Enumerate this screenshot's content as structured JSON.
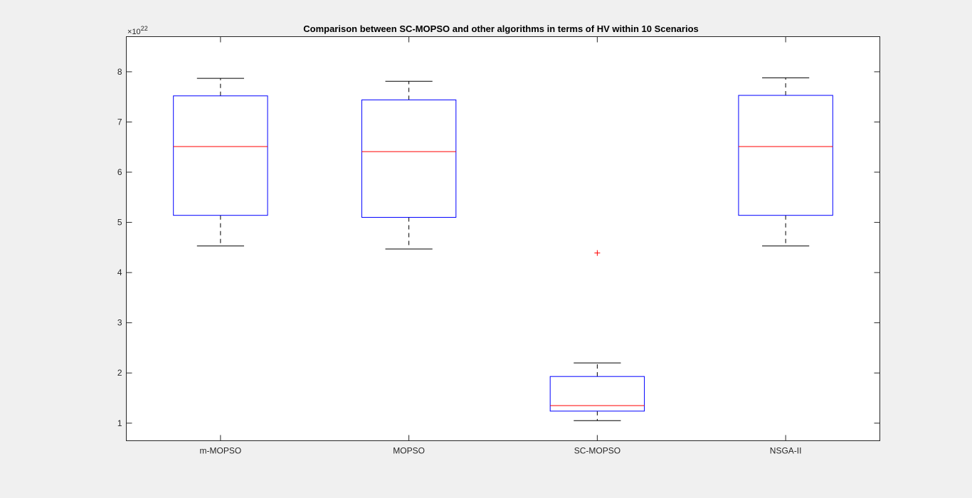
{
  "chart_data": {
    "type": "boxplot",
    "title": "Comparison between SC-MOPSO and other algorithms in terms of HV within 10 Scenarios",
    "xlabel": "",
    "ylabel": "",
    "y_exponent_base": "10",
    "y_exponent": "22",
    "ylim": [
      0.65,
      8.7
    ],
    "yticks": [
      1,
      2,
      3,
      4,
      5,
      6,
      7,
      8
    ],
    "ytick_labels": [
      "1",
      "2",
      "3",
      "4",
      "5",
      "6",
      "7",
      "8"
    ],
    "categories": [
      "m-MOPSO",
      "MOPSO",
      "SC-MOPSO",
      "NSGA-II"
    ],
    "boxes": [
      {
        "name": "m-MOPSO",
        "min": 4.53,
        "q1": 5.14,
        "median": 6.51,
        "q3": 7.52,
        "max": 7.87,
        "outliers": []
      },
      {
        "name": "MOPSO",
        "min": 4.47,
        "q1": 5.1,
        "median": 6.41,
        "q3": 7.44,
        "max": 7.81,
        "outliers": []
      },
      {
        "name": "SC-MOPSO",
        "min": 1.05,
        "q1": 1.24,
        "median": 1.35,
        "q3": 1.93,
        "max": 2.2,
        "outliers": [
          4.39
        ]
      },
      {
        "name": "NSGA-II",
        "min": 4.53,
        "q1": 5.14,
        "median": 6.51,
        "q3": 7.53,
        "max": 7.88,
        "outliers": []
      }
    ],
    "grid": false,
    "legend": "none",
    "colors": {
      "box": "#0000ff",
      "median": "#ff0000",
      "whisker": "#000000",
      "outlier": "#ff0000",
      "axes": "#262626",
      "background": "#f0f0f0",
      "plot_area": "#ffffff"
    }
  }
}
